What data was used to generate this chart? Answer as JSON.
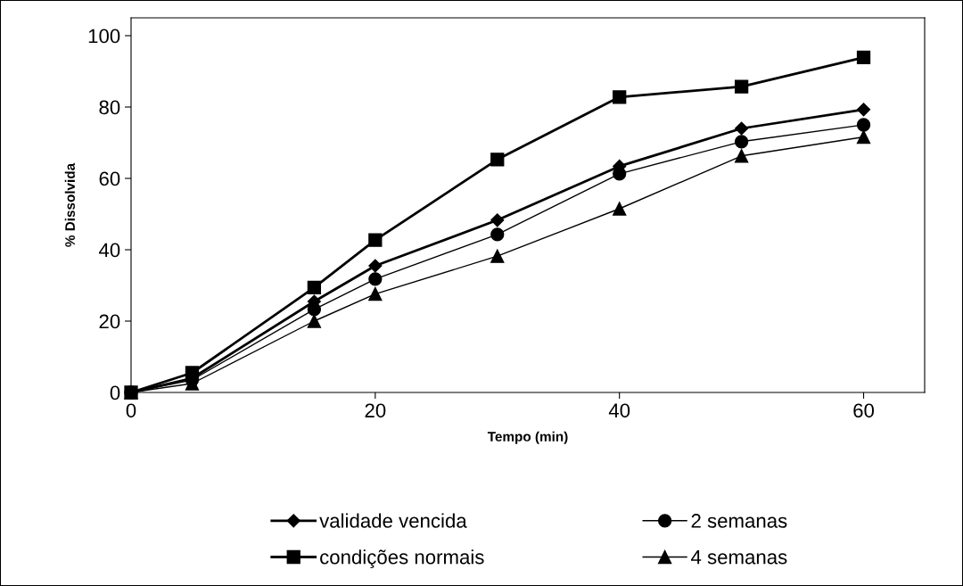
{
  "chart_data": {
    "type": "line",
    "xlabel": "Tempo (min)",
    "ylabel": "% Dissolvida",
    "x": [
      0,
      5,
      15,
      20,
      30,
      40,
      50,
      60
    ],
    "series": [
      {
        "name": "validade vencida",
        "color": "#000000",
        "marker": "diamond",
        "values": [
          0,
          4,
          25.5,
          35.5,
          48.3,
          63.4,
          74,
          79.3
        ]
      },
      {
        "name": "condições normais",
        "color": "#000000",
        "marker": "square",
        "values": [
          0,
          5.5,
          29.4,
          42.7,
          65.3,
          82.8,
          85.7,
          93.9
        ]
      },
      {
        "name": "2 semanas",
        "color": "#000000",
        "marker": "circle",
        "values": [
          0,
          3.5,
          23.3,
          31.8,
          44.3,
          61.3,
          70.3,
          75
        ]
      },
      {
        "name": "4 semanas",
        "color": "#000000",
        "marker": "triangle",
        "values": [
          0,
          2.5,
          20,
          27.6,
          38.2,
          51.5,
          66.3,
          71.6
        ]
      }
    ],
    "xlim": [
      0,
      65
    ],
    "xticks": [
      0,
      20,
      40,
      60
    ],
    "ylim": [
      0,
      105
    ],
    "yticks": [
      0,
      20,
      40,
      60,
      80,
      100
    ],
    "grid": false,
    "legend": "bottom",
    "line_style": "solid"
  }
}
